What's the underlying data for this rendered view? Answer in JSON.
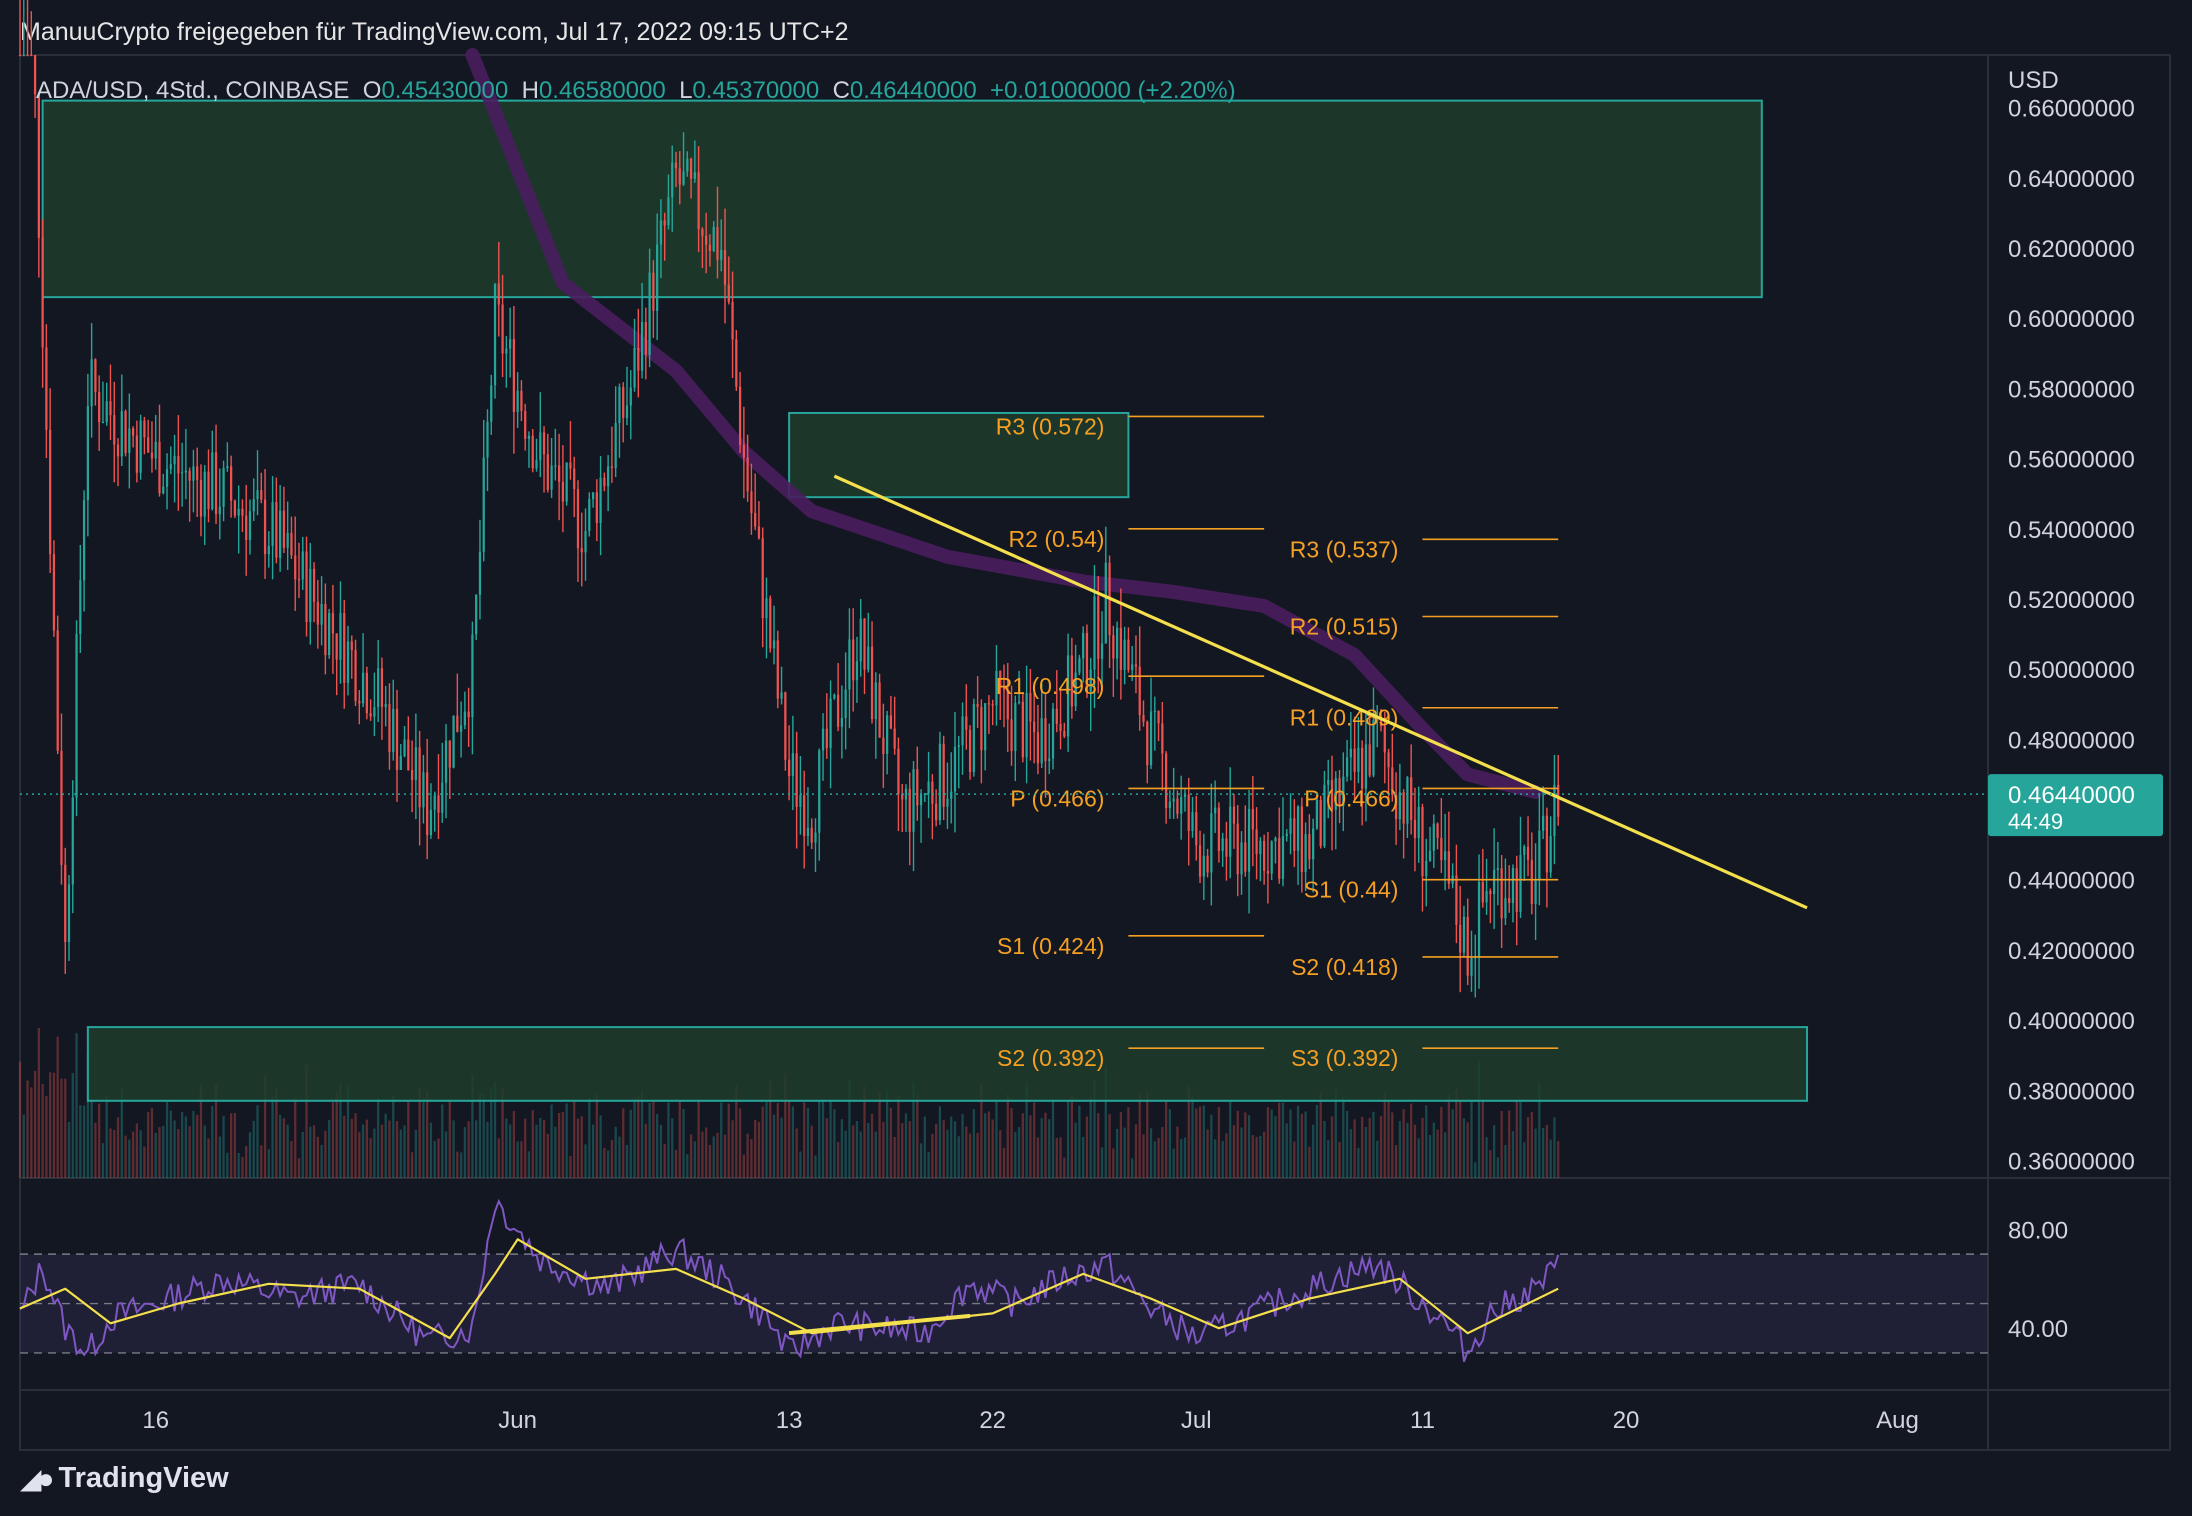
{
  "header": "ManuuCrypto freigegeben für TradingView.com, Jul 17, 2022 09:15 UTC+2",
  "brand": "TradingView",
  "colors": {
    "background": "#131722",
    "up": "#26a69a",
    "down": "#ef5350",
    "zone": "#1f3d2c",
    "zone_border": "#26a69a",
    "pivot": "#f59f23",
    "trendline": "#f4e04d",
    "ma": "#4a1d5e",
    "rsi_line": "#7e57c2",
    "rsi_ma": "#f4e04d",
    "price_tag": "#26a69a"
  },
  "chart_data": [
    {
      "type": "candlestick",
      "symbol": "ADA/USD, 4Std., COINBASE",
      "ohlc_labels": {
        "o_key": "O",
        "o": "0.45430000",
        "h_key": "H",
        "h": "0.46580000",
        "l_key": "L",
        "l": "0.45370000",
        "c_key": "C",
        "c": "0.46440000",
        "change": "+0.01000000 (+2.20%)"
      },
      "currency": "USD",
      "ylim": [
        0.355,
        0.675
      ],
      "y_ticks": [
        "0.66000000",
        "0.64000000",
        "0.62000000",
        "0.60000000",
        "0.58000000",
        "0.56000000",
        "0.54000000",
        "0.52000000",
        "0.50000000",
        "0.48000000",
        "0.46000000",
        "0.44000000",
        "0.42000000",
        "0.40000000",
        "0.38000000",
        "0.36000000"
      ],
      "x_range_days": [
        "2022-05-10",
        "2022-08-05"
      ],
      "x_ticks": [
        {
          "label": "16",
          "date": "2022-05-16"
        },
        {
          "label": "Jun",
          "date": "2022-06-01"
        },
        {
          "label": "13",
          "date": "2022-06-13"
        },
        {
          "label": "22",
          "date": "2022-06-22"
        },
        {
          "label": "Jul",
          "date": "2022-07-01"
        },
        {
          "label": "11",
          "date": "2022-07-11"
        },
        {
          "label": "20",
          "date": "2022-07-20"
        },
        {
          "label": "Aug",
          "date": "2022-08-01"
        }
      ],
      "price_path": [
        [
          "2022-05-10",
          0.78
        ],
        [
          "2022-05-12",
          0.42
        ],
        [
          "2022-05-13",
          0.58
        ],
        [
          "2022-05-16",
          0.56
        ],
        [
          "2022-05-19",
          0.55
        ],
        [
          "2022-05-21",
          0.54
        ],
        [
          "2022-05-23",
          0.52
        ],
        [
          "2022-05-26",
          0.49
        ],
        [
          "2022-05-28",
          0.46
        ],
        [
          "2022-05-30",
          0.5
        ],
        [
          "2022-05-31",
          0.6
        ],
        [
          "2022-06-02",
          0.56
        ],
        [
          "2022-06-04",
          0.54
        ],
        [
          "2022-06-06",
          0.58
        ],
        [
          "2022-06-08",
          0.64
        ],
        [
          "2022-06-10",
          0.62
        ],
        [
          "2022-06-11",
          0.56
        ],
        [
          "2022-06-13",
          0.47
        ],
        [
          "2022-06-14",
          0.46
        ],
        [
          "2022-06-16",
          0.51
        ],
        [
          "2022-06-18",
          0.46
        ],
        [
          "2022-06-20",
          0.47
        ],
        [
          "2022-06-22",
          0.49
        ],
        [
          "2022-06-24",
          0.48
        ],
        [
          "2022-06-26",
          0.5
        ],
        [
          "2022-06-27",
          0.52
        ],
        [
          "2022-06-29",
          0.48
        ],
        [
          "2022-07-01",
          0.45
        ],
        [
          "2022-07-03",
          0.45
        ],
        [
          "2022-07-06",
          0.45
        ],
        [
          "2022-07-08",
          0.47
        ],
        [
          "2022-07-09",
          0.48
        ],
        [
          "2022-07-11",
          0.45
        ],
        [
          "2022-07-12",
          0.44
        ],
        [
          "2022-07-13",
          0.42
        ],
        [
          "2022-07-14",
          0.44
        ],
        [
          "2022-07-16",
          0.44
        ],
        [
          "2022-07-17",
          0.4644
        ]
      ],
      "zones": [
        {
          "from": "2022-05-11",
          "to": "2022-07-26",
          "low": 0.606,
          "high": 0.662
        },
        {
          "from": "2022-06-13",
          "to": "2022-06-28",
          "low": 0.549,
          "high": 0.573
        },
        {
          "from": "2022-05-13",
          "to": "2022-07-28",
          "low": 0.377,
          "high": 0.398
        }
      ],
      "pivot_sets": [
        {
          "from": "2022-06-28",
          "to": "2022-07-04",
          "levels": [
            {
              "label": "R3 (0.572)",
              "value": 0.572
            },
            {
              "label": "R2 (0.54)",
              "value": 0.54
            },
            {
              "label": "R1 (0.498)",
              "value": 0.498
            },
            {
              "label": "P (0.466)",
              "value": 0.466
            },
            {
              "label": "S1 (0.424)",
              "value": 0.424
            },
            {
              "label": "S2 (0.392)",
              "value": 0.392
            }
          ]
        },
        {
          "from": "2022-07-11",
          "to": "2022-07-17",
          "levels": [
            {
              "label": "R3 (0.537)",
              "value": 0.537
            },
            {
              "label": "R2 (0.515)",
              "value": 0.515
            },
            {
              "label": "R1 (0.489)",
              "value": 0.489
            },
            {
              "label": "P (0.466)",
              "value": 0.466
            },
            {
              "label": "S1 (0.44)",
              "value": 0.44
            },
            {
              "label": "S2 (0.418)",
              "value": 0.418
            },
            {
              "label": "S3 (0.392)",
              "value": 0.392
            }
          ]
        }
      ],
      "trendline": [
        [
          "2022-06-15",
          0.555
        ],
        [
          "2022-07-28",
          0.432
        ]
      ],
      "moving_average": [
        [
          "2022-05-30",
          0.68
        ],
        [
          "2022-06-03",
          0.61
        ],
        [
          "2022-06-08",
          0.585
        ],
        [
          "2022-06-11",
          0.562
        ],
        [
          "2022-06-14",
          0.545
        ],
        [
          "2022-06-20",
          0.532
        ],
        [
          "2022-06-26",
          0.525
        ],
        [
          "2022-06-30",
          0.522
        ],
        [
          "2022-07-04",
          0.518
        ],
        [
          "2022-07-08",
          0.504
        ],
        [
          "2022-07-11",
          0.483
        ],
        [
          "2022-07-13",
          0.47
        ],
        [
          "2022-07-16",
          0.465
        ]
      ],
      "last_price": "0.46440000",
      "countdown": "44:49"
    },
    {
      "type": "line",
      "indicator": "RSI",
      "ylim": [
        15,
        100
      ],
      "y_ticks": [
        "80.00",
        "40.00"
      ],
      "bands": [
        30,
        50,
        70
      ],
      "rsi": [
        [
          "2022-05-10",
          45
        ],
        [
          "2022-05-11",
          65
        ],
        [
          "2022-05-12",
          40
        ],
        [
          "2022-05-13",
          30
        ],
        [
          "2022-05-14",
          44
        ],
        [
          "2022-05-16",
          50
        ],
        [
          "2022-05-19",
          60
        ],
        [
          "2022-05-22",
          52
        ],
        [
          "2022-05-25",
          58
        ],
        [
          "2022-05-28",
          35
        ],
        [
          "2022-05-30",
          40
        ],
        [
          "2022-05-31",
          92
        ],
        [
          "2022-06-02",
          68
        ],
        [
          "2022-06-05",
          56
        ],
        [
          "2022-06-08",
          72
        ],
        [
          "2022-06-10",
          60
        ],
        [
          "2022-06-12",
          44
        ],
        [
          "2022-06-13",
          30
        ],
        [
          "2022-06-15",
          42
        ],
        [
          "2022-06-17",
          40
        ],
        [
          "2022-06-19",
          38
        ],
        [
          "2022-06-21",
          58
        ],
        [
          "2022-06-23",
          50
        ],
        [
          "2022-06-25",
          60
        ],
        [
          "2022-06-27",
          66
        ],
        [
          "2022-06-29",
          48
        ],
        [
          "2022-07-01",
          36
        ],
        [
          "2022-07-04",
          48
        ],
        [
          "2022-07-07",
          60
        ],
        [
          "2022-07-09",
          66
        ],
        [
          "2022-07-10",
          58
        ],
        [
          "2022-07-12",
          42
        ],
        [
          "2022-07-13",
          30
        ],
        [
          "2022-07-14",
          46
        ],
        [
          "2022-07-16",
          56
        ],
        [
          "2022-07-17",
          65
        ]
      ],
      "rsi_ma": [
        [
          "2022-05-10",
          48
        ],
        [
          "2022-05-12",
          56
        ],
        [
          "2022-05-14",
          42
        ],
        [
          "2022-05-17",
          50
        ],
        [
          "2022-05-21",
          58
        ],
        [
          "2022-05-25",
          56
        ],
        [
          "2022-05-29",
          36
        ],
        [
          "2022-05-31",
          62
        ],
        [
          "2022-06-01",
          76
        ],
        [
          "2022-06-04",
          60
        ],
        [
          "2022-06-08",
          64
        ],
        [
          "2022-06-11",
          52
        ],
        [
          "2022-06-14",
          38
        ],
        [
          "2022-06-18",
          42
        ],
        [
          "2022-06-22",
          46
        ],
        [
          "2022-06-26",
          62
        ],
        [
          "2022-06-29",
          52
        ],
        [
          "2022-07-02",
          40
        ],
        [
          "2022-07-06",
          52
        ],
        [
          "2022-07-10",
          60
        ],
        [
          "2022-07-13",
          38
        ],
        [
          "2022-07-17",
          56
        ]
      ],
      "divergence_line": [
        [
          "2022-06-13",
          38
        ],
        [
          "2022-06-21",
          45
        ]
      ]
    }
  ]
}
